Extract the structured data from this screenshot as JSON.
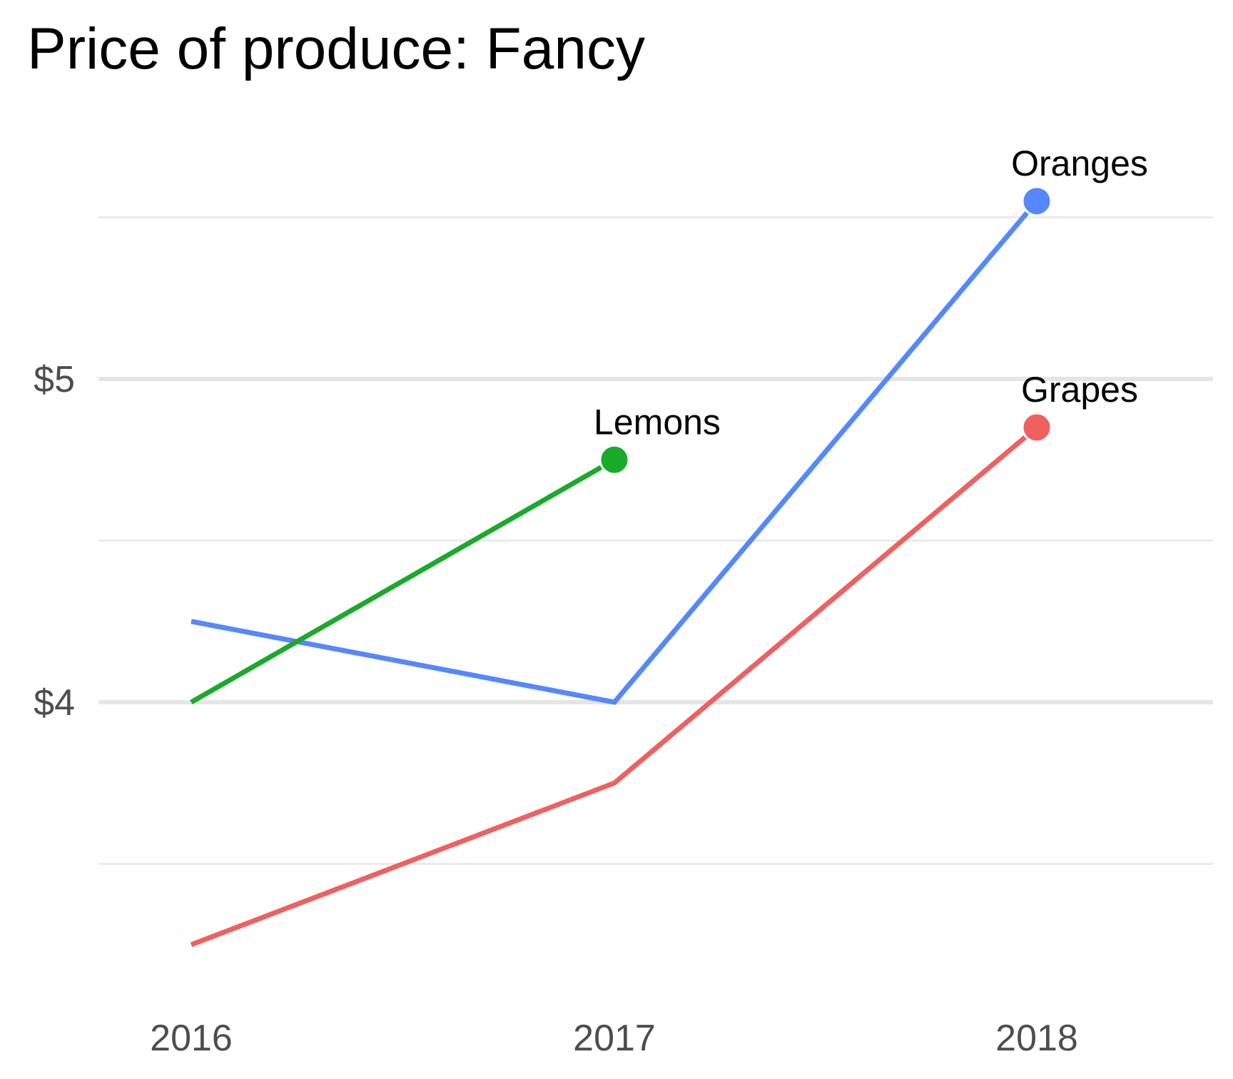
{
  "chart_data": {
    "type": "line",
    "title": "Price of produce: Fancy",
    "xlabel": "",
    "ylabel": "",
    "x": [
      "2016",
      "2017",
      "2018"
    ],
    "y_tick_values": [
      4,
      5
    ],
    "y_tick_labels": [
      "$4",
      "$5"
    ],
    "y_minor_grid": [
      3.5,
      4.5,
      5.5
    ],
    "ylim": [
      3.25,
      5.75
    ],
    "grid": true,
    "legend": "direct-labels",
    "series": [
      {
        "name": "Oranges",
        "color": "#5588ff",
        "values": [
          4.25,
          4.0,
          5.55
        ]
      },
      {
        "name": "Grapes",
        "color": "#f06060",
        "values": [
          3.25,
          3.75,
          4.85
        ]
      },
      {
        "name": "Lemons",
        "color": "#1aaa2a",
        "values": [
          4.0,
          4.75,
          null
        ]
      }
    ]
  }
}
